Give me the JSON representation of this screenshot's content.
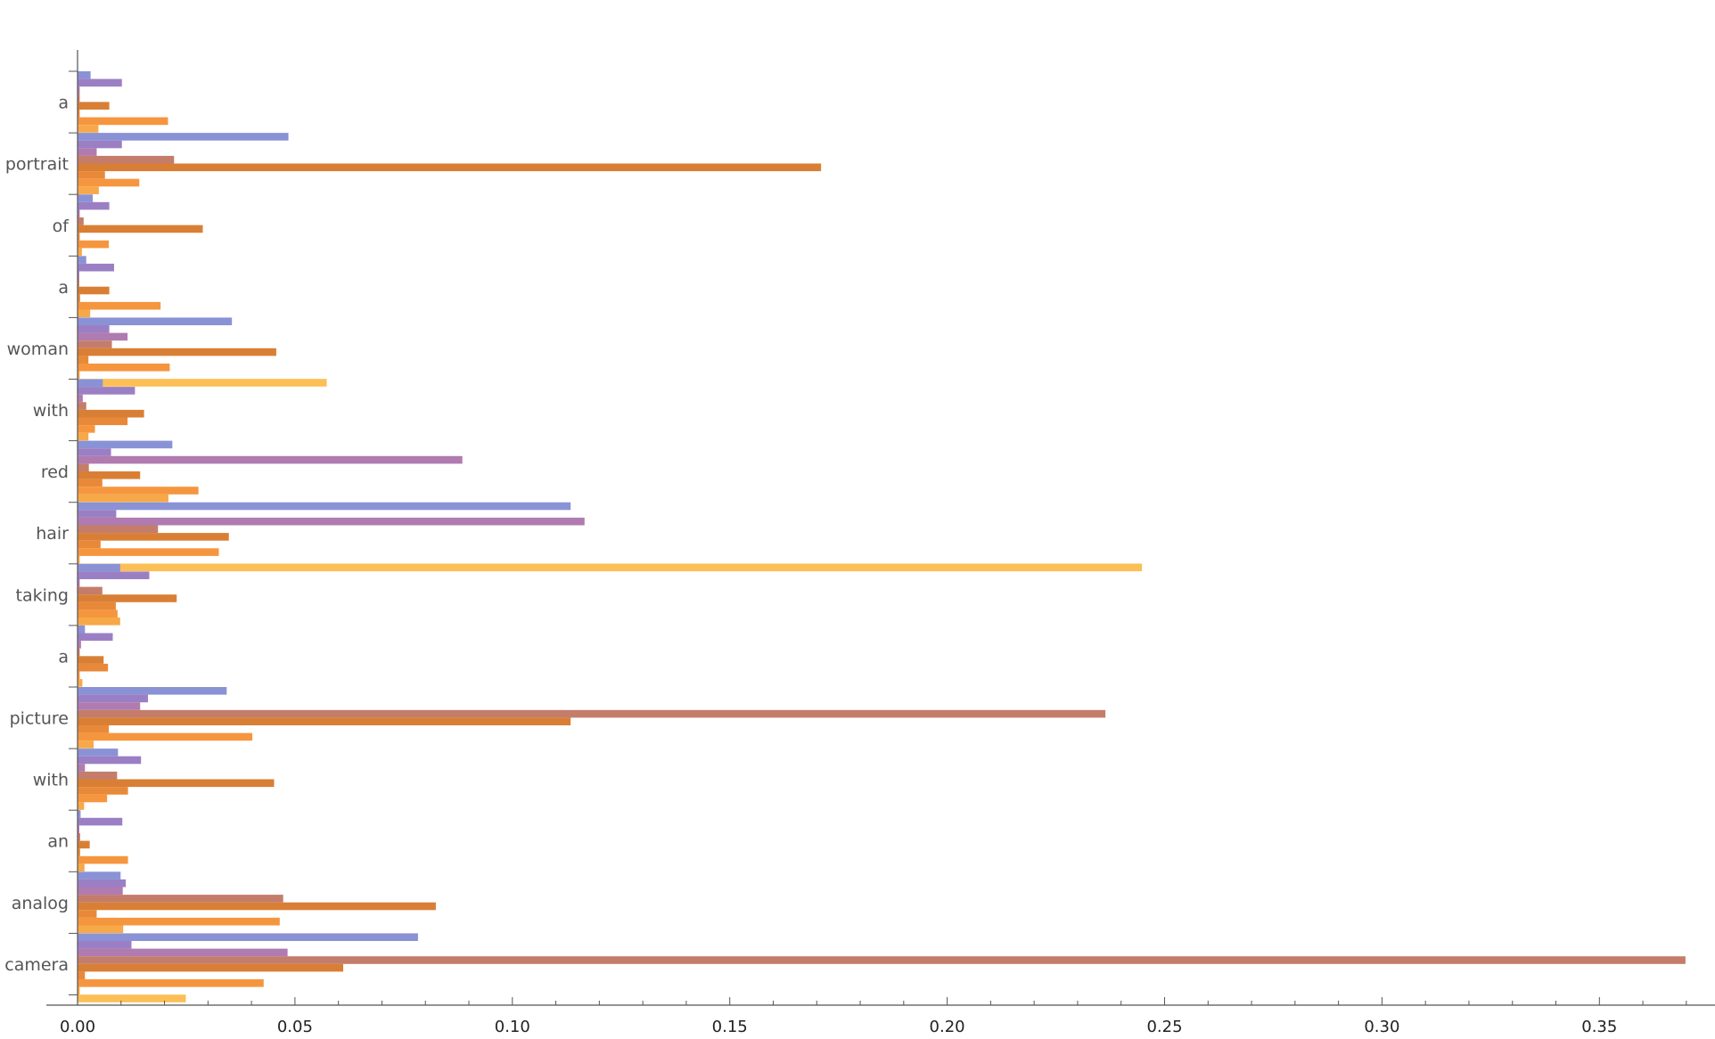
{
  "chart_data": {
    "type": "bar",
    "orientation": "horizontal",
    "categories": [
      "a",
      "portrait",
      "of",
      "a",
      "woman",
      "with",
      "red",
      "hair",
      "taking",
      "a",
      "picture",
      "with",
      "an",
      "analog",
      "camera"
    ],
    "series": [
      {
        "color": "#8a92d6",
        "values": [
          0.003,
          0.0485,
          0.0035,
          0.002,
          0.0355,
          0.0058,
          0.0218,
          0.1134,
          0.0098,
          0.0017,
          0.0343,
          0.0093,
          0.0007,
          0.0099,
          0.0783
        ]
      },
      {
        "color": "#9b7fc4",
        "values": [
          0.0102,
          0.0102,
          0.0073,
          0.0084,
          0.0073,
          0.0132,
          0.0077,
          0.0089,
          0.0165,
          0.0081,
          0.0162,
          0.0146,
          0.0103,
          0.0111,
          0.0124
        ]
      },
      {
        "color": "#b07bb0",
        "values": [
          0.0005,
          0.0044,
          0.0005,
          0.0004,
          0.0115,
          0.0012,
          0.0885,
          0.1166,
          0.0005,
          0.0008,
          0.0144,
          0.0017,
          0.0004,
          0.0104,
          0.0483
        ]
      },
      {
        "color": "#c47d6a",
        "values": [
          0.0005,
          0.0222,
          0.0014,
          0.0004,
          0.0079,
          0.002,
          0.0026,
          0.0185,
          0.0057,
          0.0005,
          0.2364,
          0.0091,
          0.0006,
          0.0473,
          0.3698
        ]
      },
      {
        "color": "#d97f35",
        "values": [
          0.0073,
          0.171,
          0.0288,
          0.0073,
          0.0457,
          0.0153,
          0.0144,
          0.0348,
          0.0228,
          0.006,
          0.1134,
          0.0452,
          0.0028,
          0.0824,
          0.0611
        ]
      },
      {
        "color": "#e8893a",
        "values": [
          0.0005,
          0.0063,
          0.0005,
          0.0006,
          0.0025,
          0.0115,
          0.0057,
          0.0053,
          0.0088,
          0.007,
          0.0072,
          0.0116,
          0.0006,
          0.0044,
          0.0017
        ]
      },
      {
        "color": "#f5963f",
        "values": [
          0.0208,
          0.0142,
          0.0072,
          0.0191,
          0.0212,
          0.004,
          0.0278,
          0.0325,
          0.0092,
          0.0005,
          0.0402,
          0.0068,
          0.0116,
          0.0465,
          0.0428
        ]
      },
      {
        "color": "#f7a848",
        "values": [
          0.0048,
          0.0049,
          0.001,
          0.0029,
          0.0005,
          0.0025,
          0.0209,
          0.0005,
          0.0098,
          0.0011,
          0.0037,
          0.0015,
          0.0016,
          0.0105,
          0.0005
        ]
      },
      {
        "color": "#fbbf55",
        "values": [
          0.0005,
          0.0005,
          0.0005,
          0.0005,
          0.0573,
          0.0005,
          0.0005,
          0.2448,
          0.0014,
          0.0005,
          0.0005,
          0.0005,
          0.0005,
          0.0005,
          0.0249
        ]
      }
    ],
    "x_ticks": [
      "0.00",
      "0.05",
      "0.10",
      "0.15",
      "0.20",
      "0.25",
      "0.30",
      "0.35"
    ],
    "xlim": [
      0,
      0.375
    ],
    "grid": false,
    "title": "",
    "xlabel": "",
    "ylabel": ""
  }
}
